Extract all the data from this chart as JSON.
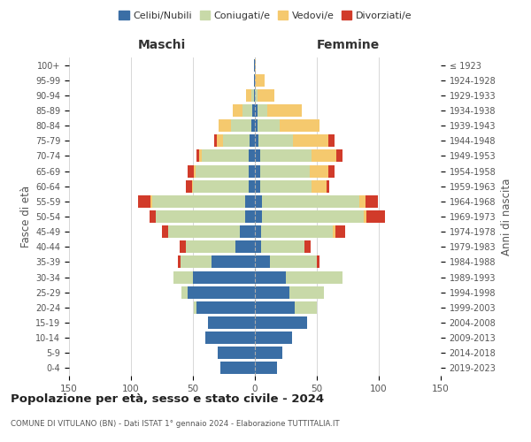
{
  "age_groups": [
    "0-4",
    "5-9",
    "10-14",
    "15-19",
    "20-24",
    "25-29",
    "30-34",
    "35-39",
    "40-44",
    "45-49",
    "50-54",
    "55-59",
    "60-64",
    "65-69",
    "70-74",
    "75-79",
    "80-84",
    "85-89",
    "90-94",
    "95-99",
    "100+"
  ],
  "birth_years": [
    "2019-2023",
    "2014-2018",
    "2009-2013",
    "2004-2008",
    "1999-2003",
    "1994-1998",
    "1989-1993",
    "1984-1988",
    "1979-1983",
    "1974-1978",
    "1969-1973",
    "1964-1968",
    "1959-1963",
    "1954-1958",
    "1949-1953",
    "1944-1948",
    "1939-1943",
    "1934-1938",
    "1929-1933",
    "1924-1928",
    "≤ 1923"
  ],
  "maschi": {
    "celibi": [
      28,
      30,
      40,
      38,
      47,
      54,
      50,
      35,
      16,
      12,
      8,
      8,
      5,
      5,
      5,
      4,
      3,
      2,
      1,
      1,
      1
    ],
    "coniugati": [
      0,
      0,
      0,
      0,
      2,
      5,
      16,
      25,
      40,
      58,
      72,
      75,
      45,
      43,
      38,
      22,
      16,
      8,
      2,
      0,
      0
    ],
    "vedove": [
      0,
      0,
      0,
      0,
      0,
      0,
      0,
      0,
      0,
      0,
      0,
      1,
      1,
      1,
      2,
      5,
      10,
      8,
      4,
      0,
      0
    ],
    "divorziate": [
      0,
      0,
      0,
      0,
      0,
      0,
      0,
      2,
      5,
      5,
      5,
      10,
      5,
      5,
      2,
      2,
      0,
      0,
      0,
      0,
      0
    ]
  },
  "femmine": {
    "nubili": [
      18,
      22,
      30,
      42,
      32,
      28,
      25,
      12,
      5,
      5,
      6,
      6,
      4,
      4,
      4,
      3,
      2,
      2,
      0,
      0,
      0
    ],
    "coniugate": [
      0,
      0,
      0,
      0,
      18,
      28,
      46,
      38,
      35,
      58,
      82,
      78,
      42,
      40,
      42,
      28,
      18,
      8,
      2,
      0,
      0
    ],
    "vedove": [
      0,
      0,
      0,
      0,
      0,
      0,
      0,
      0,
      0,
      2,
      2,
      5,
      12,
      15,
      20,
      28,
      32,
      28,
      14,
      8,
      1
    ],
    "divorziate": [
      0,
      0,
      0,
      0,
      0,
      0,
      0,
      2,
      5,
      8,
      15,
      10,
      2,
      5,
      5,
      5,
      0,
      0,
      0,
      0,
      0
    ]
  },
  "colors": {
    "celibi": "#3a6ea5",
    "coniugati": "#c8d9a8",
    "vedove": "#f5c96e",
    "divorziate": "#d13b2a"
  },
  "xlim": 150,
  "title": "Popolazione per età, sesso e stato civile - 2024",
  "subtitle": "COMUNE DI VITULANO (BN) - Dati ISTAT 1° gennaio 2024 - Elaborazione TUTTITALIA.IT",
  "ylabel_left": "Fasce di età",
  "ylabel_right": "Anni di nascita",
  "xlabel_maschi": "Maschi",
  "xlabel_femmine": "Femmine",
  "legend_labels": [
    "Celibi/Nubili",
    "Coniugati/e",
    "Vedovi/e",
    "Divorziati/e"
  ],
  "bg_color": "#ffffff",
  "grid_color": "#cccccc"
}
